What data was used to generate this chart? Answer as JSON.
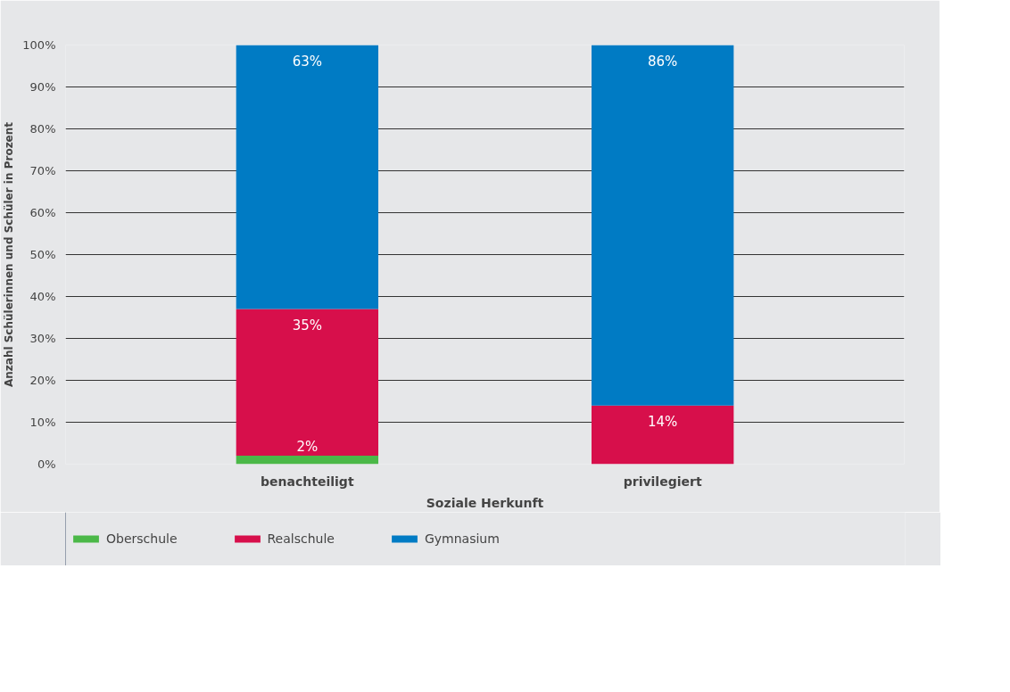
{
  "chart_data": {
    "type": "bar",
    "stacked": true,
    "categories": [
      "benachteiligt",
      "privilegiert"
    ],
    "xlabel": "Soziale Herkunft",
    "ylabel": "Anzahl Schülerinnen und Schüler in Prozent",
    "series": [
      {
        "name": "Oberschule",
        "color": "#4bb848",
        "values": [
          2,
          0
        ],
        "value_labels": [
          "2%",
          null
        ]
      },
      {
        "name": "Realschule",
        "color": "#d70f4b",
        "values": [
          35,
          14
        ],
        "value_labels": [
          "35%",
          "14%"
        ]
      },
      {
        "name": "Gymnasium",
        "color": "#007bc4",
        "values": [
          63,
          86
        ],
        "value_labels": [
          "63%",
          "86%"
        ]
      }
    ],
    "ylim": [
      0,
      100
    ],
    "yticks": [
      {
        "value": 0,
        "label": "0%"
      },
      {
        "value": 10,
        "label": "10%"
      },
      {
        "value": 20,
        "label": "20%"
      },
      {
        "value": 30,
        "label": "30%"
      },
      {
        "value": 40,
        "label": "40%"
      },
      {
        "value": 50,
        "label": "50%"
      },
      {
        "value": 60,
        "label": "60%"
      },
      {
        "value": 70,
        "label": "70%"
      },
      {
        "value": 80,
        "label": "80%"
      },
      {
        "value": 90,
        "label": "90%"
      },
      {
        "value": 100,
        "label": "100%"
      }
    ],
    "grid": "y",
    "legend": "bottom"
  }
}
